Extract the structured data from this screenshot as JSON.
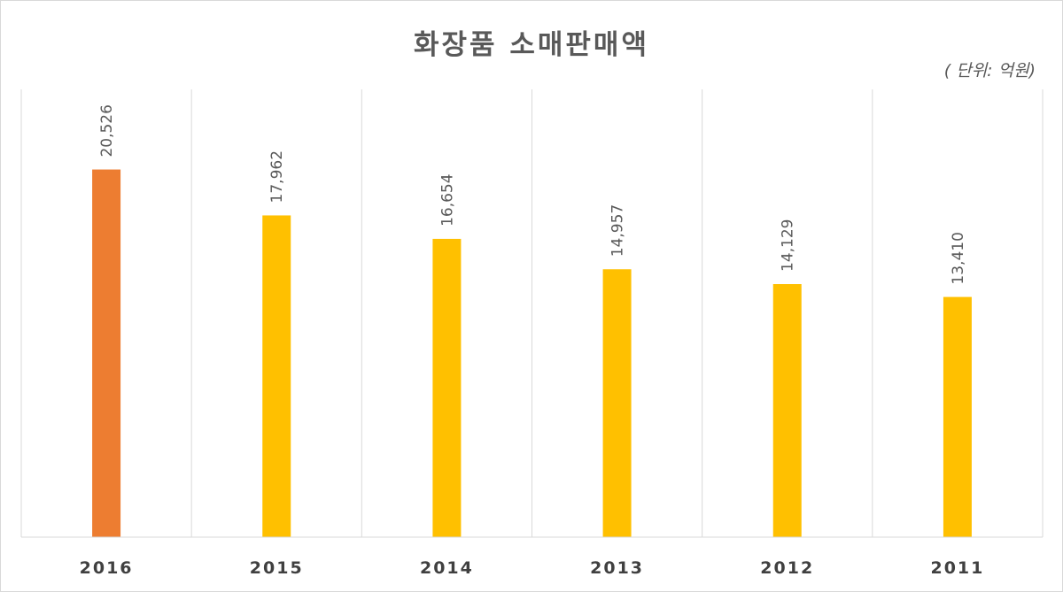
{
  "chart_data": {
    "type": "bar",
    "title": "화장품 소매판매액",
    "unit_note": "( 단위: 억원)",
    "categories": [
      "2016",
      "2015",
      "2014",
      "2013",
      "2012",
      "2011"
    ],
    "values": [
      20526,
      17962,
      16654,
      14957,
      14129,
      13410
    ],
    "data_labels": [
      "20,526",
      "17,962",
      "16,654",
      "14,957",
      "14,129",
      "13,410"
    ],
    "colors": [
      "#ED7D31",
      "#FFC000",
      "#FFC000",
      "#FFC000",
      "#FFC000",
      "#FFC000"
    ],
    "ylim": [
      0,
      25000
    ],
    "grid": "vertical category separators",
    "legend": "none"
  }
}
